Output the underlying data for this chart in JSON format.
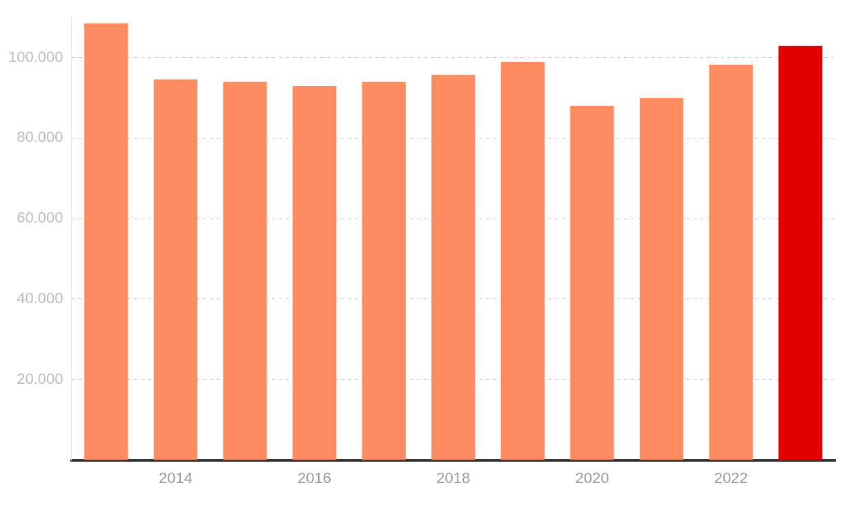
{
  "chart_data": {
    "type": "bar",
    "categories": [
      null,
      "2014",
      null,
      "2016",
      null,
      "2018",
      null,
      "2020",
      null,
      "2022",
      null
    ],
    "values": [
      108500,
      94600,
      94000,
      92900,
      94000,
      95700,
      98900,
      88000,
      90000,
      98200,
      102900
    ],
    "colors": [
      "#ff8c61",
      "#ff8c61",
      "#ff8c61",
      "#ff8c61",
      "#ff8c61",
      "#ff8c61",
      "#ff8c61",
      "#ff8c61",
      "#ff8c61",
      "#ff8c61",
      "#e00000"
    ],
    "ylim": [
      0,
      110000
    ],
    "yticks": [
      {
        "value": 20000,
        "label": "20.000"
      },
      {
        "value": 40000,
        "label": "40.000"
      },
      {
        "value": 60000,
        "label": "60.000"
      },
      {
        "value": 80000,
        "label": "80.000"
      },
      {
        "value": 100000,
        "label": "100.000"
      }
    ],
    "grid": "y",
    "line_style": "dashed"
  }
}
